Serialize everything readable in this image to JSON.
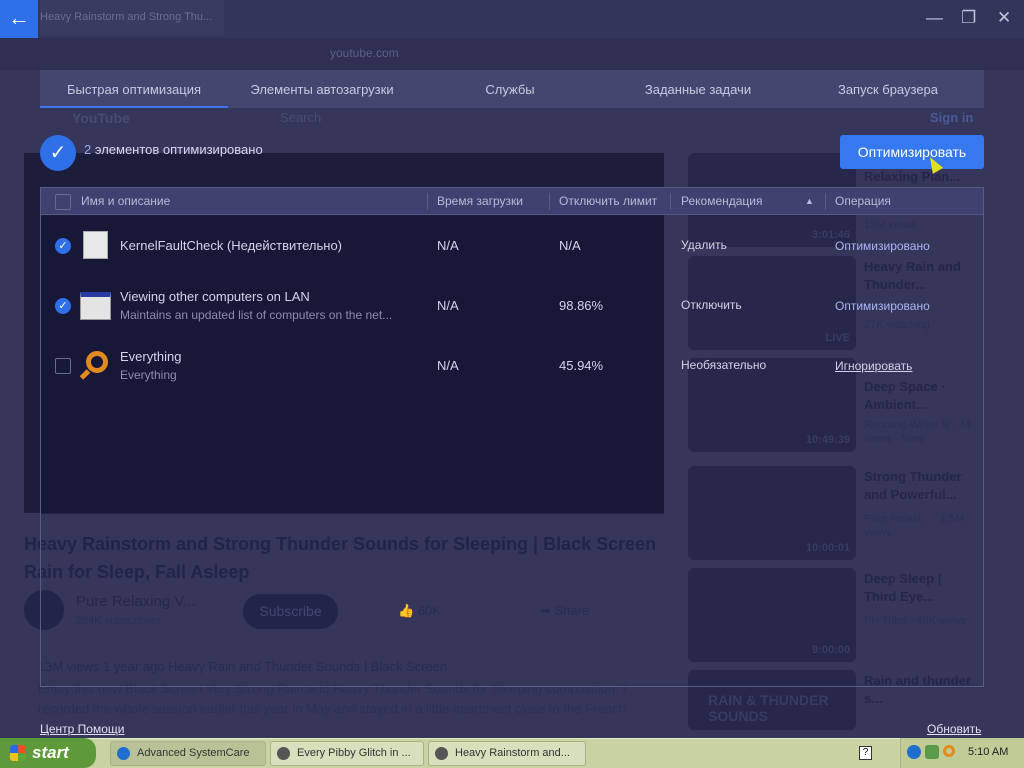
{
  "browser": {
    "tab_title": "Heavy Rainstorm and Strong Thu...",
    "url": "youtube.com",
    "search_placeholder": "Search",
    "sign_in": "Sign in",
    "logo": "YouTube"
  },
  "video": {
    "title": "Heavy Rainstorm and Strong Thunder Sounds for Sleeping | Black Screen Rain for Sleep, Fall Asleep",
    "channel": "Pure Relaxing V...",
    "subscribers": "264K subscribers",
    "subscribe": "Subscribe",
    "likes": "60K",
    "share": "Share",
    "views": "13M views  1 year ago",
    "tags": "Heavy Rain and Thunder Sounds | Black Screen",
    "description": "Enjoy this new Black Screen Very Strong Rain and Heavy Thunder Sounds for Sleeping composition. I recorded the whole session earlier this year in May and stayed in a little apartment close to the French"
  },
  "sidebar_videos": [
    {
      "title": "You & Me · Relaxing Pian...",
      "meta": "12M views",
      "duration": "3:01:46"
    },
    {
      "title": "Heavy Rain and Thunder...",
      "meta": "27K watching",
      "duration": "LIVE"
    },
    {
      "title": "Deep Space · Ambient...",
      "meta": "Relaxing White N · 44 views · New",
      "duration": "10:49:39"
    },
    {
      "title": "Strong Thunder and Powerful...",
      "meta": "Pure Relaxi... · 1.5M views",
      "duration": "10:00:01"
    },
    {
      "title": "Deep Sleep | Third Eye...",
      "meta": "PH Tribe · 49K views",
      "duration": "9:00:00"
    },
    {
      "title": "Rain and thunder s...",
      "meta": "",
      "duration": "RAIN & THUNDER SOUNDS"
    }
  ],
  "dialog": {
    "tabs": [
      "Быстрая оптимизация",
      "Элементы автозагрузки",
      "Службы",
      "Заданные задачи",
      "Запуск браузера"
    ],
    "active_tab": 0,
    "summary_count": "2",
    "summary_text": " элементов оптимизировано",
    "optimize_button": "Оптимизировать",
    "columns": [
      "Имя и описание",
      "Время загрузки",
      "Отключить лимит",
      "Рекомендация",
      "Операция"
    ],
    "sort_column": "Рекомендация",
    "rows": [
      {
        "checked": true,
        "icon": "file-icon",
        "name": "KernelFaultCheck (Недействительно)",
        "description": "",
        "boot_time": "N/A",
        "limit": "N/A",
        "recommendation": "Удалить",
        "operation": "Оптимизировано"
      },
      {
        "checked": true,
        "icon": "window-icon",
        "name": "Viewing other computers on LAN",
        "description": "Maintains an updated list of computers on the net...",
        "boot_time": "N/A",
        "limit": "98.86%",
        "recommendation": "Отключить",
        "operation": "Оптимизировано"
      },
      {
        "checked": false,
        "icon": "magnifier-icon",
        "name": "Everything",
        "description": "Everything",
        "boot_time": "N/A",
        "limit": "45.94%",
        "recommendation": "Необязательно",
        "operation": "Игнорировать"
      }
    ],
    "help_link": "Центр Помощи",
    "refresh_link": "Обновить"
  },
  "taskbar": {
    "start": "start",
    "tasks": [
      "Advanced SystemCare",
      "Every Pibby Glitch in ...",
      "Heavy Rainstorm and..."
    ],
    "clock": "5:10 AM"
  },
  "colors": {
    "accent": "#3678f0",
    "overlay": "#35365a",
    "taskbar": "#c8d2a2"
  }
}
